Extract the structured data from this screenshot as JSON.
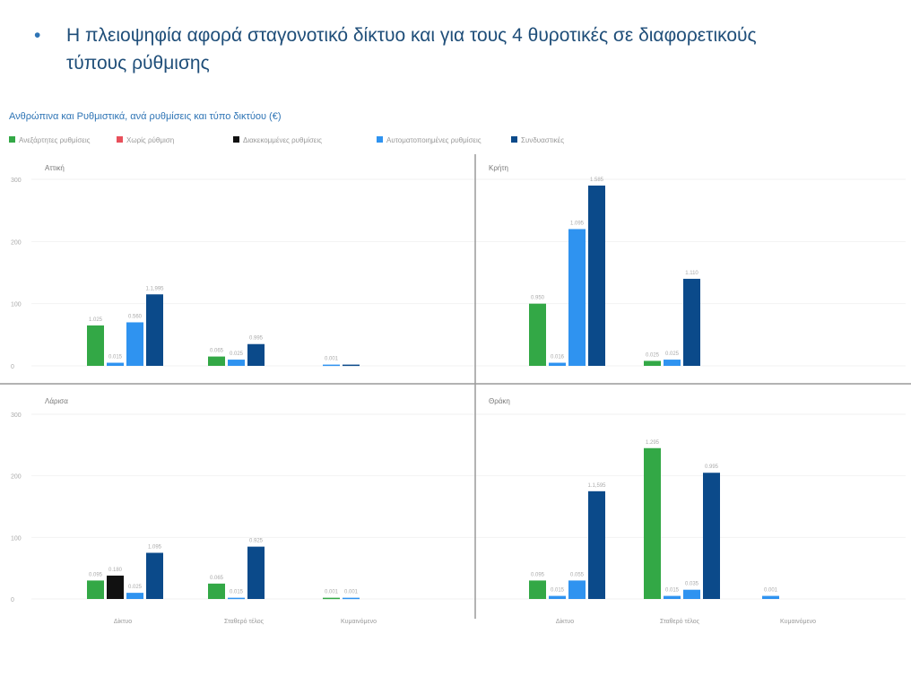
{
  "slide": {
    "bullet": "•",
    "line1": "Η πλειοψηφία αφορά σταγονοτικό δίκτυο και για τους 4 θυροτικές σε διαφορετικούς",
    "line2": "τύπους ρύθμισης"
  },
  "chart_data": {
    "type": "bar",
    "title": "Ανθρώπινα και Ρυθμιστικά, ανά ρυθμίσεις και τύπο δικτύου (€)",
    "categories": [
      "Δίκτυο",
      "Σταθερό τέλος",
      "Κυμαινόμενο"
    ],
    "series": [
      {
        "name": "Ανεξάρτητες ρυθμίσεις",
        "color": "#33a846"
      },
      {
        "name": "Χωρίς ρύθμιση",
        "color": "#e8505b"
      },
      {
        "name": "Διακεκομμένες ρυθμίσεις",
        "color": "#111111"
      },
      {
        "name": "Αυτοματοποιημένες ρυθμίσεις",
        "color": "#2f93f0"
      },
      {
        "name": "Συνδυαστικές",
        "color": "#0b4a8a"
      }
    ],
    "ylim": [
      0,
      300
    ],
    "yticks": [
      "300",
      "200",
      "100",
      "0"
    ],
    "panels": [
      {
        "title": "Αττική",
        "groups": [
          {
            "bars": [
              {
                "s": 0,
                "v": 65,
                "label": "1.025"
              },
              {
                "s": 3,
                "v": 5,
                "label": "0.015"
              },
              {
                "s": 3,
                "v": 70,
                "label": "0.560"
              },
              {
                "s": 4,
                "v": 115,
                "label": "1.1,995"
              }
            ]
          },
          {
            "bars": [
              {
                "s": 0,
                "v": 15,
                "label": "0.065"
              },
              {
                "s": 3,
                "v": 10,
                "label": "0.025"
              },
              {
                "s": 4,
                "v": 35,
                "label": "0.995"
              }
            ]
          },
          {
            "bars": [
              {
                "s": 3,
                "v": 2,
                "label": "0.001"
              },
              {
                "s": 4,
                "v": 2,
                "label": ""
              }
            ]
          }
        ]
      },
      {
        "title": "Κρήτη",
        "groups": [
          {
            "bars": [
              {
                "s": 0,
                "v": 100,
                "label": "0.950"
              },
              {
                "s": 3,
                "v": 5,
                "label": "0.016"
              },
              {
                "s": 3,
                "v": 220,
                "label": "1.095"
              },
              {
                "s": 4,
                "v": 290,
                "label": "1.585"
              }
            ]
          },
          {
            "bars": [
              {
                "s": 0,
                "v": 8,
                "label": "0.025"
              },
              {
                "s": 3,
                "v": 10,
                "label": "0.025"
              },
              {
                "s": 4,
                "v": 140,
                "label": "1.110"
              }
            ]
          },
          {
            "bars": []
          }
        ]
      },
      {
        "title": "Λάρισα",
        "groups": [
          {
            "bars": [
              {
                "s": 0,
                "v": 30,
                "label": "0.095"
              },
              {
                "s": 2,
                "v": 38,
                "label": "0.180"
              },
              {
                "s": 3,
                "v": 10,
                "label": "0.025"
              },
              {
                "s": 4,
                "v": 75,
                "label": "1.095"
              }
            ]
          },
          {
            "bars": [
              {
                "s": 0,
                "v": 25,
                "label": "0.065"
              },
              {
                "s": 3,
                "v": 2,
                "label": "0.015"
              },
              {
                "s": 4,
                "v": 85,
                "label": "0.925"
              }
            ]
          },
          {
            "bars": [
              {
                "s": 0,
                "v": 2,
                "label": "0.001"
              },
              {
                "s": 3,
                "v": 2,
                "label": "0.001"
              }
            ]
          }
        ]
      },
      {
        "title": "Θράκη",
        "groups": [
          {
            "bars": [
              {
                "s": 0,
                "v": 30,
                "label": "0.095"
              },
              {
                "s": 3,
                "v": 5,
                "label": "0.015"
              },
              {
                "s": 3,
                "v": 30,
                "label": "0.055"
              },
              {
                "s": 4,
                "v": 175,
                "label": "1.1,595"
              }
            ]
          },
          {
            "bars": [
              {
                "s": 0,
                "v": 245,
                "label": "1.295"
              },
              {
                "s": 3,
                "v": 5,
                "label": "0.015"
              },
              {
                "s": 3,
                "v": 15,
                "label": "0.035"
              },
              {
                "s": 4,
                "v": 205,
                "label": "0.995"
              }
            ]
          },
          {
            "bars": [
              {
                "s": 3,
                "v": 5,
                "label": "0.001"
              }
            ]
          }
        ]
      }
    ]
  }
}
